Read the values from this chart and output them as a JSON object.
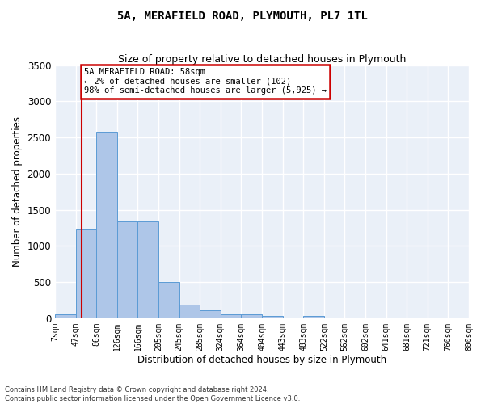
{
  "title": "5A, MERAFIELD ROAD, PLYMOUTH, PL7 1TL",
  "subtitle": "Size of property relative to detached houses in Plymouth",
  "xlabel": "Distribution of detached houses by size in Plymouth",
  "ylabel": "Number of detached properties",
  "bin_labels": [
    "7sqm",
    "47sqm",
    "86sqm",
    "126sqm",
    "166sqm",
    "205sqm",
    "245sqm",
    "285sqm",
    "324sqm",
    "364sqm",
    "404sqm",
    "443sqm",
    "483sqm",
    "522sqm",
    "562sqm",
    "602sqm",
    "641sqm",
    "681sqm",
    "721sqm",
    "760sqm",
    "800sqm"
  ],
  "bar_values": [
    55,
    1230,
    2580,
    1340,
    1340,
    500,
    190,
    105,
    55,
    50,
    30,
    0,
    30,
    0,
    0,
    0,
    0,
    0,
    0,
    0
  ],
  "bar_color": "#aec6e8",
  "bar_edge_color": "#5b9bd5",
  "annotation_text": "5A MERAFIELD ROAD: 58sqm\n← 2% of detached houses are smaller (102)\n98% of semi-detached houses are larger (5,925) →",
  "annotation_box_color": "#ffffff",
  "annotation_box_edge_color": "#cc0000",
  "subject_line_color": "#cc0000",
  "ylim": [
    0,
    3500
  ],
  "yticks": [
    0,
    500,
    1000,
    1500,
    2000,
    2500,
    3000,
    3500
  ],
  "bg_color": "#eaf0f8",
  "grid_color": "#ffffff",
  "footer_line1": "Contains HM Land Registry data © Crown copyright and database right 2024.",
  "footer_line2": "Contains public sector information licensed under the Open Government Licence v3.0."
}
